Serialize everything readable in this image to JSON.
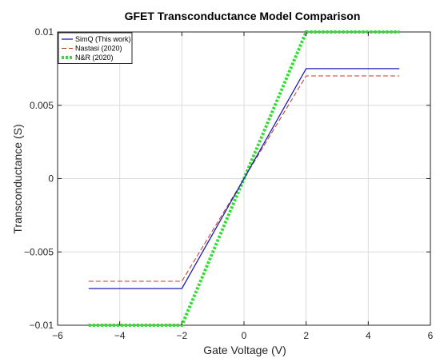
{
  "chart_data": {
    "type": "line",
    "title": "GFET Transconductance Model Comparison",
    "xlabel": "Gate Voltage (V)",
    "ylabel": "Transconductance (S)",
    "xlim": [
      -6,
      6
    ],
    "ylim": [
      -0.01,
      0.01
    ],
    "xticks": [
      -6,
      -4,
      -2,
      0,
      2,
      4,
      6
    ],
    "xtick_labels": [
      "−6",
      "−4",
      "−2",
      "0",
      "2",
      "4",
      "6"
    ],
    "yticks": [
      -0.01,
      -0.005,
      0,
      0.005,
      0.01
    ],
    "ytick_labels": [
      "−0.01",
      "−0.005",
      "0",
      "0.005",
      "0.01"
    ],
    "grid": true,
    "legend_position": "top-left",
    "series": [
      {
        "name": "SimQ (This work)",
        "color": "#1f1fb4",
        "style": "solid",
        "x": [
          -5,
          -2,
          2,
          5
        ],
        "y": [
          -0.0075,
          -0.0075,
          0.0075,
          0.0075
        ]
      },
      {
        "name": "Nastasi (2020)",
        "color": "#c0392b",
        "style": "dashed",
        "x": [
          -5,
          -2,
          2,
          5
        ],
        "y": [
          -0.007,
          -0.007,
          0.007,
          0.007
        ]
      },
      {
        "name": "N&R (2020)",
        "color": "#33dd33",
        "style": "dotted",
        "x": [
          -5,
          -2,
          2,
          5
        ],
        "y": [
          -0.01,
          -0.01,
          0.01,
          0.01
        ]
      }
    ]
  }
}
